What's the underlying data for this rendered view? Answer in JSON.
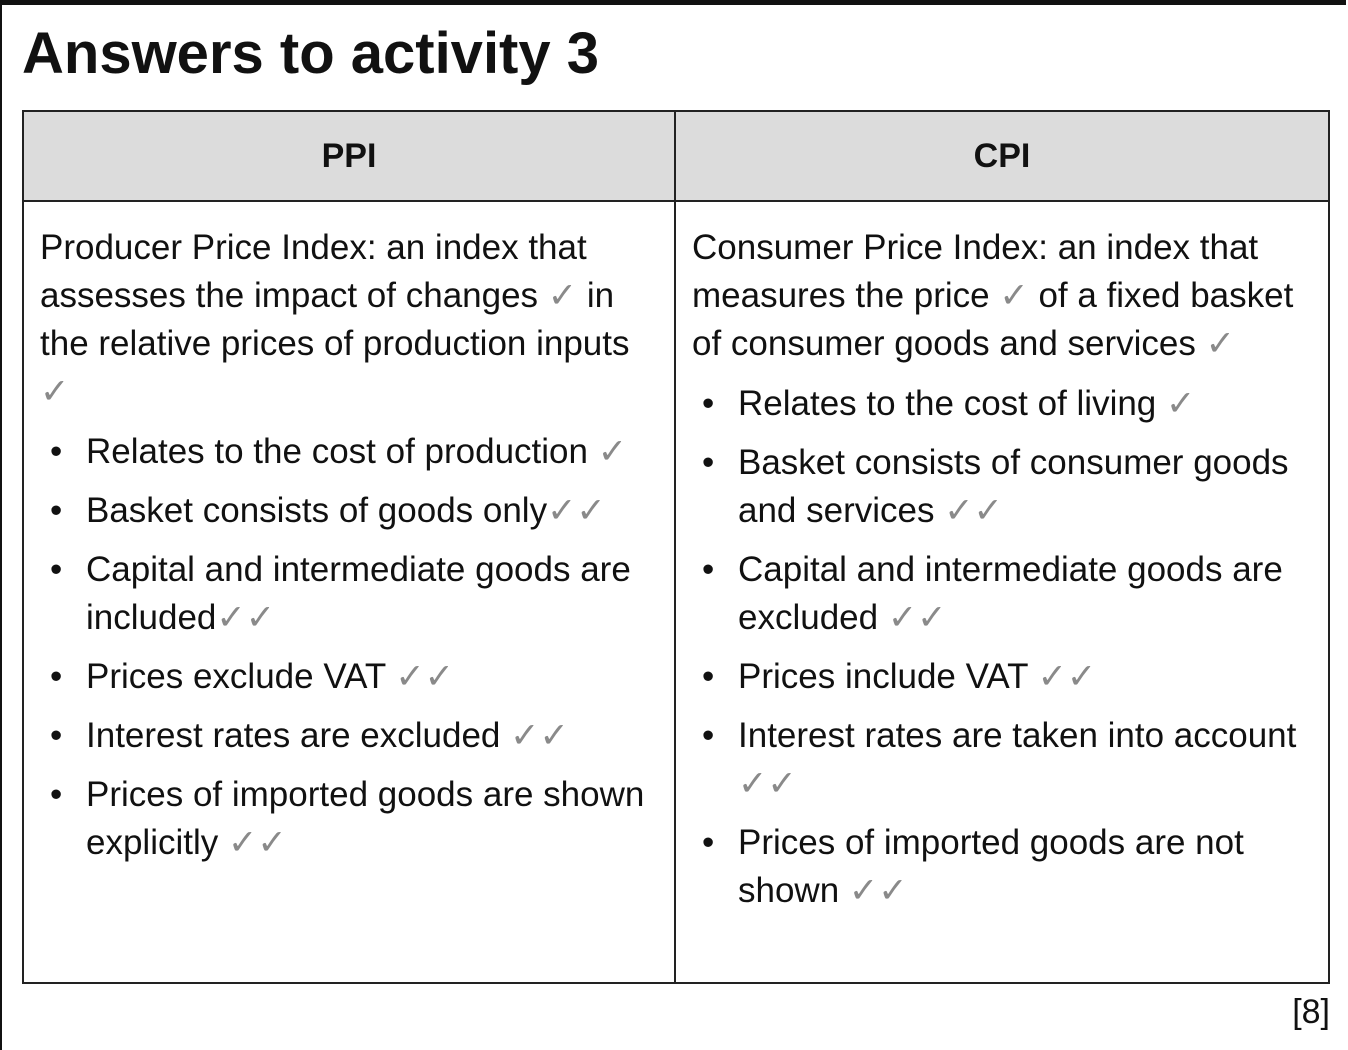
{
  "title": "Answers to activity 3",
  "tick": "✓",
  "double_tick": "✓✓",
  "columns": [
    {
      "header": "PPI",
      "definition": "Producer Price Index: an index that assesses the impact of changes",
      "definition_mid": "in the relative prices of production inputs",
      "points": [
        {
          "text": "Relates to the cost of production",
          "ticks": "✓"
        },
        {
          "text": "Basket consists of goods only",
          "ticks": "✓✓"
        },
        {
          "text": "Capital and intermediate goods are included",
          "ticks": "✓✓"
        },
        {
          "text": "Prices exclude VAT",
          "ticks": "✓✓"
        },
        {
          "text": "Interest rates are excluded",
          "ticks": "✓✓"
        },
        {
          "text": "Prices of imported goods are shown explicitly",
          "ticks": "✓✓"
        }
      ]
    },
    {
      "header": "CPI",
      "definition": "Consumer Price Index: an index that measures the price",
      "definition_mid": "of a fixed basket of consumer goods and services",
      "points": [
        {
          "text": "Relates to the cost of living",
          "ticks": "✓"
        },
        {
          "text": "Basket consists of consumer goods and services",
          "ticks": "✓✓"
        },
        {
          "text": "Capital and intermediate goods are excluded",
          "ticks": "✓✓"
        },
        {
          "text": "Prices include VAT",
          "ticks": "✓✓"
        },
        {
          "text": "Interest rates are taken into account",
          "ticks": "✓✓"
        },
        {
          "text": "Prices of imported goods are not shown",
          "ticks": "✓✓"
        }
      ]
    }
  ],
  "bullet": "•",
  "marks": "[8]"
}
